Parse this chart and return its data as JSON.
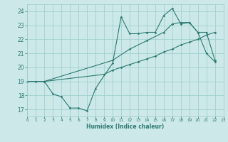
{
  "xlabel": "Humidex (Indice chaleur)",
  "xlim": [
    0,
    23
  ],
  "ylim": [
    16.5,
    24.5
  ],
  "yticks": [
    17,
    18,
    19,
    20,
    21,
    22,
    23,
    24
  ],
  "xticks": [
    0,
    1,
    2,
    3,
    4,
    5,
    6,
    7,
    8,
    9,
    10,
    11,
    12,
    13,
    14,
    15,
    16,
    17,
    18,
    19,
    20,
    21,
    22,
    23
  ],
  "bg_color": "#cce8e8",
  "grid_color": "#99cccc",
  "line_color": "#2d7a72",
  "line1_x": [
    0,
    1,
    2,
    3,
    4,
    5,
    6,
    7,
    8,
    10,
    11,
    12,
    13,
    14,
    15,
    16,
    17,
    18,
    19,
    20,
    21,
    22
  ],
  "line1_y": [
    19.0,
    19.0,
    19.0,
    18.1,
    17.9,
    17.1,
    17.1,
    16.9,
    18.5,
    20.3,
    23.6,
    22.4,
    22.4,
    22.5,
    22.5,
    23.7,
    24.2,
    23.1,
    23.2,
    22.5,
    21.0,
    20.4
  ],
  "line2_x": [
    0,
    2,
    10,
    12,
    14,
    16,
    17,
    18,
    19,
    20,
    21,
    22
  ],
  "line2_y": [
    19.0,
    19.0,
    20.5,
    21.3,
    21.9,
    22.5,
    23.1,
    23.2,
    23.2,
    22.5,
    22.5,
    20.5
  ],
  "line3_x": [
    0,
    2,
    9,
    10,
    11,
    12,
    13,
    14,
    15,
    16,
    17,
    18,
    19,
    20,
    21,
    22
  ],
  "line3_y": [
    19.0,
    19.0,
    19.5,
    19.8,
    20.0,
    20.2,
    20.4,
    20.6,
    20.8,
    21.1,
    21.3,
    21.6,
    21.8,
    22.0,
    22.3,
    22.5
  ]
}
